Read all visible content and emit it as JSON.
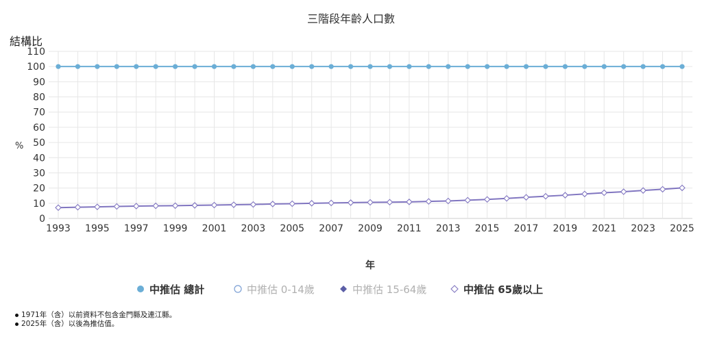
{
  "chart_data": {
    "type": "line",
    "title": "三階段年齡人口數",
    "ytitle": "結構比",
    "yunit": "%",
    "xlabel": "年",
    "ylabel": "%",
    "ylim": [
      0,
      110
    ],
    "yticks": [
      0,
      10,
      20,
      30,
      40,
      50,
      60,
      70,
      80,
      90,
      100,
      110
    ],
    "xticks": [
      "1993",
      "1995",
      "1997",
      "1999",
      "2001",
      "2003",
      "2005",
      "2007",
      "2009",
      "2011",
      "2013",
      "2015",
      "2017",
      "2019",
      "2021",
      "2023",
      "2025"
    ],
    "grid": true,
    "legend_position": "bottom",
    "x": [
      1993,
      1994,
      1995,
      1996,
      1997,
      1998,
      1999,
      2000,
      2001,
      2002,
      2003,
      2004,
      2005,
      2006,
      2007,
      2008,
      2009,
      2010,
      2011,
      2012,
      2013,
      2014,
      2015,
      2016,
      2017,
      2018,
      2019,
      2020,
      2021,
      2022,
      2023,
      2024,
      2025
    ],
    "series": [
      {
        "name": "中推估 總計",
        "visible": true,
        "color": "#6baed6",
        "marker": "circle-filled",
        "values": [
          100,
          100,
          100,
          100,
          100,
          100,
          100,
          100,
          100,
          100,
          100,
          100,
          100,
          100,
          100,
          100,
          100,
          100,
          100,
          100,
          100,
          100,
          100,
          100,
          100,
          100,
          100,
          100,
          100,
          100,
          100,
          100,
          100
        ]
      },
      {
        "name": "中推估 0-14歲",
        "visible": false,
        "color": "#7b9fd4",
        "marker": "circle-open",
        "values": []
      },
      {
        "name": "中推估 15-64歲",
        "visible": false,
        "color": "#5b5ea6",
        "marker": "diamond-filled",
        "values": []
      },
      {
        "name": "中推估 65歲以上",
        "visible": true,
        "color": "#8075c0",
        "marker": "diamond-open",
        "values": [
          7.1,
          7.4,
          7.6,
          7.9,
          8.1,
          8.3,
          8.4,
          8.6,
          8.8,
          9.0,
          9.2,
          9.5,
          9.7,
          10.0,
          10.2,
          10.4,
          10.6,
          10.7,
          10.9,
          11.2,
          11.5,
          12.0,
          12.5,
          13.2,
          13.9,
          14.6,
          15.3,
          16.1,
          16.9,
          17.6,
          18.4,
          19.2,
          20.1
        ]
      }
    ]
  },
  "notes": [
    "1971年（含）以前資料不包含金門縣及連江縣。",
    "2025年（含）以後為推估值。"
  ]
}
